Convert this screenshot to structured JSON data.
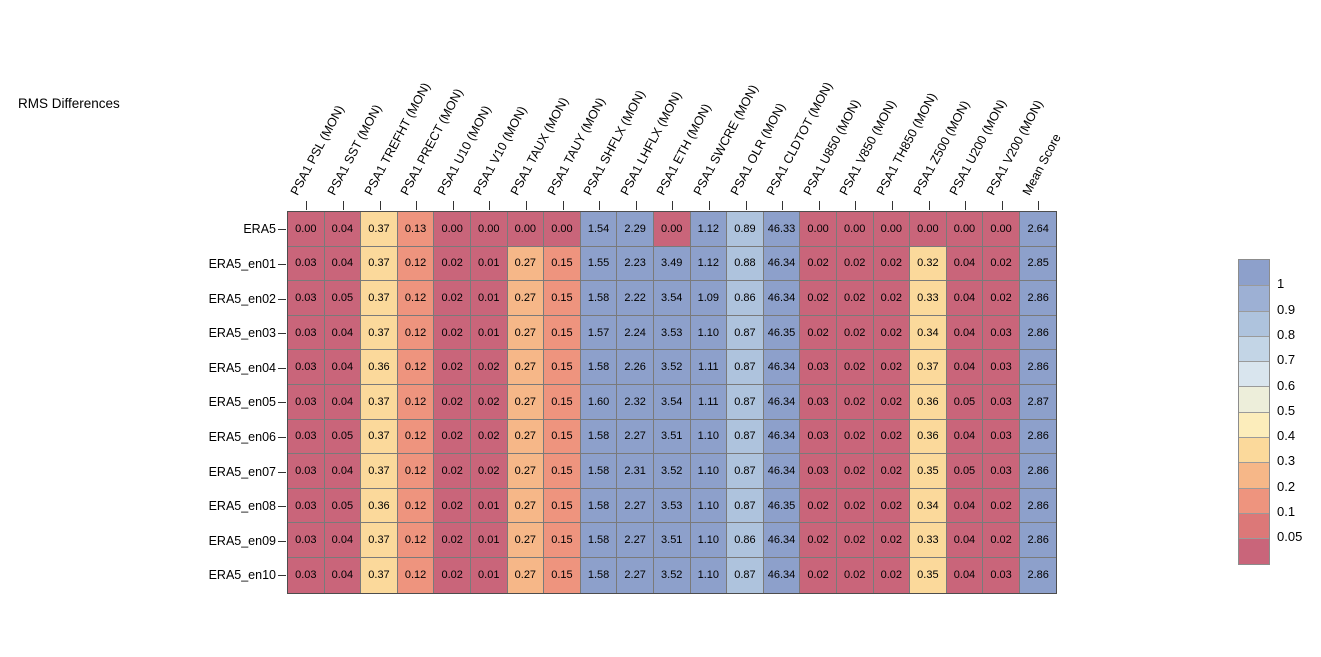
{
  "title": "RMS Differences",
  "chart_data": {
    "type": "heatmap",
    "title": "RMS Differences",
    "columns": [
      "PSA1 PSL (MON)",
      "PSA1 SST (MON)",
      "PSA1 TREFHT (MON)",
      "PSA1 PRECT (MON)",
      "PSA1 U10 (MON)",
      "PSA1 V10 (MON)",
      "PSA1 TAUX (MON)",
      "PSA1 TAUY (MON)",
      "PSA1 SHFLX (MON)",
      "PSA1 LHFLX (MON)",
      "PSA1 ETH (MON)",
      "PSA1 SWCRE (MON)",
      "PSA1 OLR (MON)",
      "PSA1 CLDTOT (MON)",
      "PSA1 U850 (MON)",
      "PSA1 V850 (MON)",
      "PSA1 TH850 (MON)",
      "PSA1 Z500 (MON)",
      "PSA1 U200 (MON)",
      "PSA1 V200 (MON)",
      "Mean Score"
    ],
    "rows": [
      "ERA5",
      "ERA5_en01",
      "ERA5_en02",
      "ERA5_en03",
      "ERA5_en04",
      "ERA5_en05",
      "ERA5_en06",
      "ERA5_en07",
      "ERA5_en08",
      "ERA5_en09",
      "ERA5_en10"
    ],
    "values": [
      [
        0.0,
        0.04,
        0.37,
        0.13,
        0.0,
        0.0,
        0.0,
        0.0,
        1.54,
        2.29,
        0.0,
        1.12,
        0.89,
        46.33,
        0.0,
        0.0,
        0.0,
        0.0,
        0.0,
        0.0,
        2.64
      ],
      [
        0.03,
        0.04,
        0.37,
        0.12,
        0.02,
        0.01,
        0.27,
        0.15,
        1.55,
        2.23,
        3.49,
        1.12,
        0.88,
        46.34,
        0.02,
        0.02,
        0.02,
        0.32,
        0.04,
        0.02,
        2.85
      ],
      [
        0.03,
        0.05,
        0.37,
        0.12,
        0.02,
        0.01,
        0.27,
        0.15,
        1.58,
        2.22,
        3.54,
        1.09,
        0.86,
        46.34,
        0.02,
        0.02,
        0.02,
        0.33,
        0.04,
        0.02,
        2.86
      ],
      [
        0.03,
        0.04,
        0.37,
        0.12,
        0.02,
        0.01,
        0.27,
        0.15,
        1.57,
        2.24,
        3.53,
        1.1,
        0.87,
        46.35,
        0.02,
        0.02,
        0.02,
        0.34,
        0.04,
        0.03,
        2.86
      ],
      [
        0.03,
        0.04,
        0.36,
        0.12,
        0.02,
        0.02,
        0.27,
        0.15,
        1.58,
        2.26,
        3.52,
        1.11,
        0.87,
        46.34,
        0.03,
        0.02,
        0.02,
        0.37,
        0.04,
        0.03,
        2.86
      ],
      [
        0.03,
        0.04,
        0.37,
        0.12,
        0.02,
        0.02,
        0.27,
        0.15,
        1.6,
        2.32,
        3.54,
        1.11,
        0.87,
        46.34,
        0.03,
        0.02,
        0.02,
        0.36,
        0.05,
        0.03,
        2.87
      ],
      [
        0.03,
        0.05,
        0.37,
        0.12,
        0.02,
        0.02,
        0.27,
        0.15,
        1.58,
        2.27,
        3.51,
        1.1,
        0.87,
        46.34,
        0.03,
        0.02,
        0.02,
        0.36,
        0.04,
        0.03,
        2.86
      ],
      [
        0.03,
        0.04,
        0.37,
        0.12,
        0.02,
        0.02,
        0.27,
        0.15,
        1.58,
        2.31,
        3.52,
        1.1,
        0.87,
        46.34,
        0.03,
        0.02,
        0.02,
        0.35,
        0.05,
        0.03,
        2.86
      ],
      [
        0.03,
        0.05,
        0.36,
        0.12,
        0.02,
        0.01,
        0.27,
        0.15,
        1.58,
        2.27,
        3.53,
        1.1,
        0.87,
        46.35,
        0.02,
        0.02,
        0.02,
        0.34,
        0.04,
        0.02,
        2.86
      ],
      [
        0.03,
        0.04,
        0.37,
        0.12,
        0.02,
        0.01,
        0.27,
        0.15,
        1.58,
        2.27,
        3.51,
        1.1,
        0.86,
        46.34,
        0.02,
        0.02,
        0.02,
        0.33,
        0.04,
        0.02,
        2.86
      ],
      [
        0.03,
        0.04,
        0.37,
        0.12,
        0.02,
        0.01,
        0.27,
        0.15,
        1.58,
        2.27,
        3.52,
        1.1,
        0.87,
        46.34,
        0.02,
        0.02,
        0.02,
        0.35,
        0.04,
        0.03,
        2.86
      ]
    ],
    "legend": {
      "boundary_labels": [
        "1",
        "0.9",
        "0.8",
        "0.7",
        "0.6",
        "0.5",
        "0.4",
        "0.3",
        "0.2",
        "0.1",
        "0.05"
      ],
      "thresholds": [
        1,
        0.9,
        0.8,
        0.7,
        0.6,
        0.5,
        0.4,
        0.3,
        0.2,
        0.1,
        0.05
      ],
      "band_colors_top_to_bottom": [
        "#8da0cb",
        "#9db0d4",
        "#aec3dd",
        "#c3d5e6",
        "#d9e5ee",
        "#edeeda",
        "#fcedbb",
        "#fbd99b",
        "#f6b788",
        "#ee947e",
        "#dc7878",
        "#c9657a"
      ]
    },
    "colors": {
      "grid_line": "#7a7a7a",
      "grid_border": "#4d4d4d",
      "text": "#000000",
      "background": "#ffffff"
    }
  }
}
